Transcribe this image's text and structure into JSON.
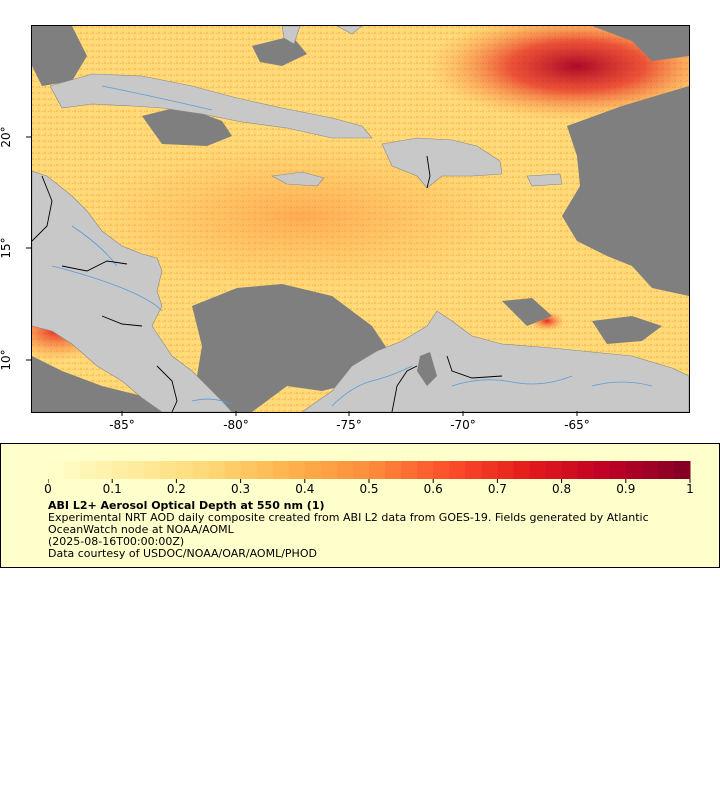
{
  "map": {
    "lon_ticks": [
      "-85°",
      "-80°",
      "-75°",
      "-70°",
      "-65°"
    ],
    "lat_ticks": [
      "20°",
      "15°",
      "10°"
    ],
    "colors": {
      "land": "#c8c8c8",
      "no_data": "#7f7f7f",
      "border": "#000000",
      "river": "#5b9bd5"
    }
  },
  "legend": {
    "ticks": [
      "0",
      "0.1",
      "0.2",
      "0.3",
      "0.4",
      "0.5",
      "0.6",
      "0.7",
      "0.8",
      "0.9",
      "1"
    ],
    "colormap": [
      "#ffffcc",
      "#ffeda0",
      "#fed976",
      "#feb24c",
      "#fd8d3c",
      "#fc4e2a",
      "#e31a1c",
      "#bd0026",
      "#800026"
    ],
    "title": "ABI L2+ Aerosol Optical Depth at 550 nm (1)",
    "description": "Experimental NRT AOD daily composite created from ABI L2 data from GOES-19. Fields generated by Atlantic OceanWatch node at NOAA/AOML",
    "time": "(2025-08-16T00:00:00Z)",
    "credit": "Data courtesy of USDOC/NOAA/OAR/AOML/PHOD"
  }
}
